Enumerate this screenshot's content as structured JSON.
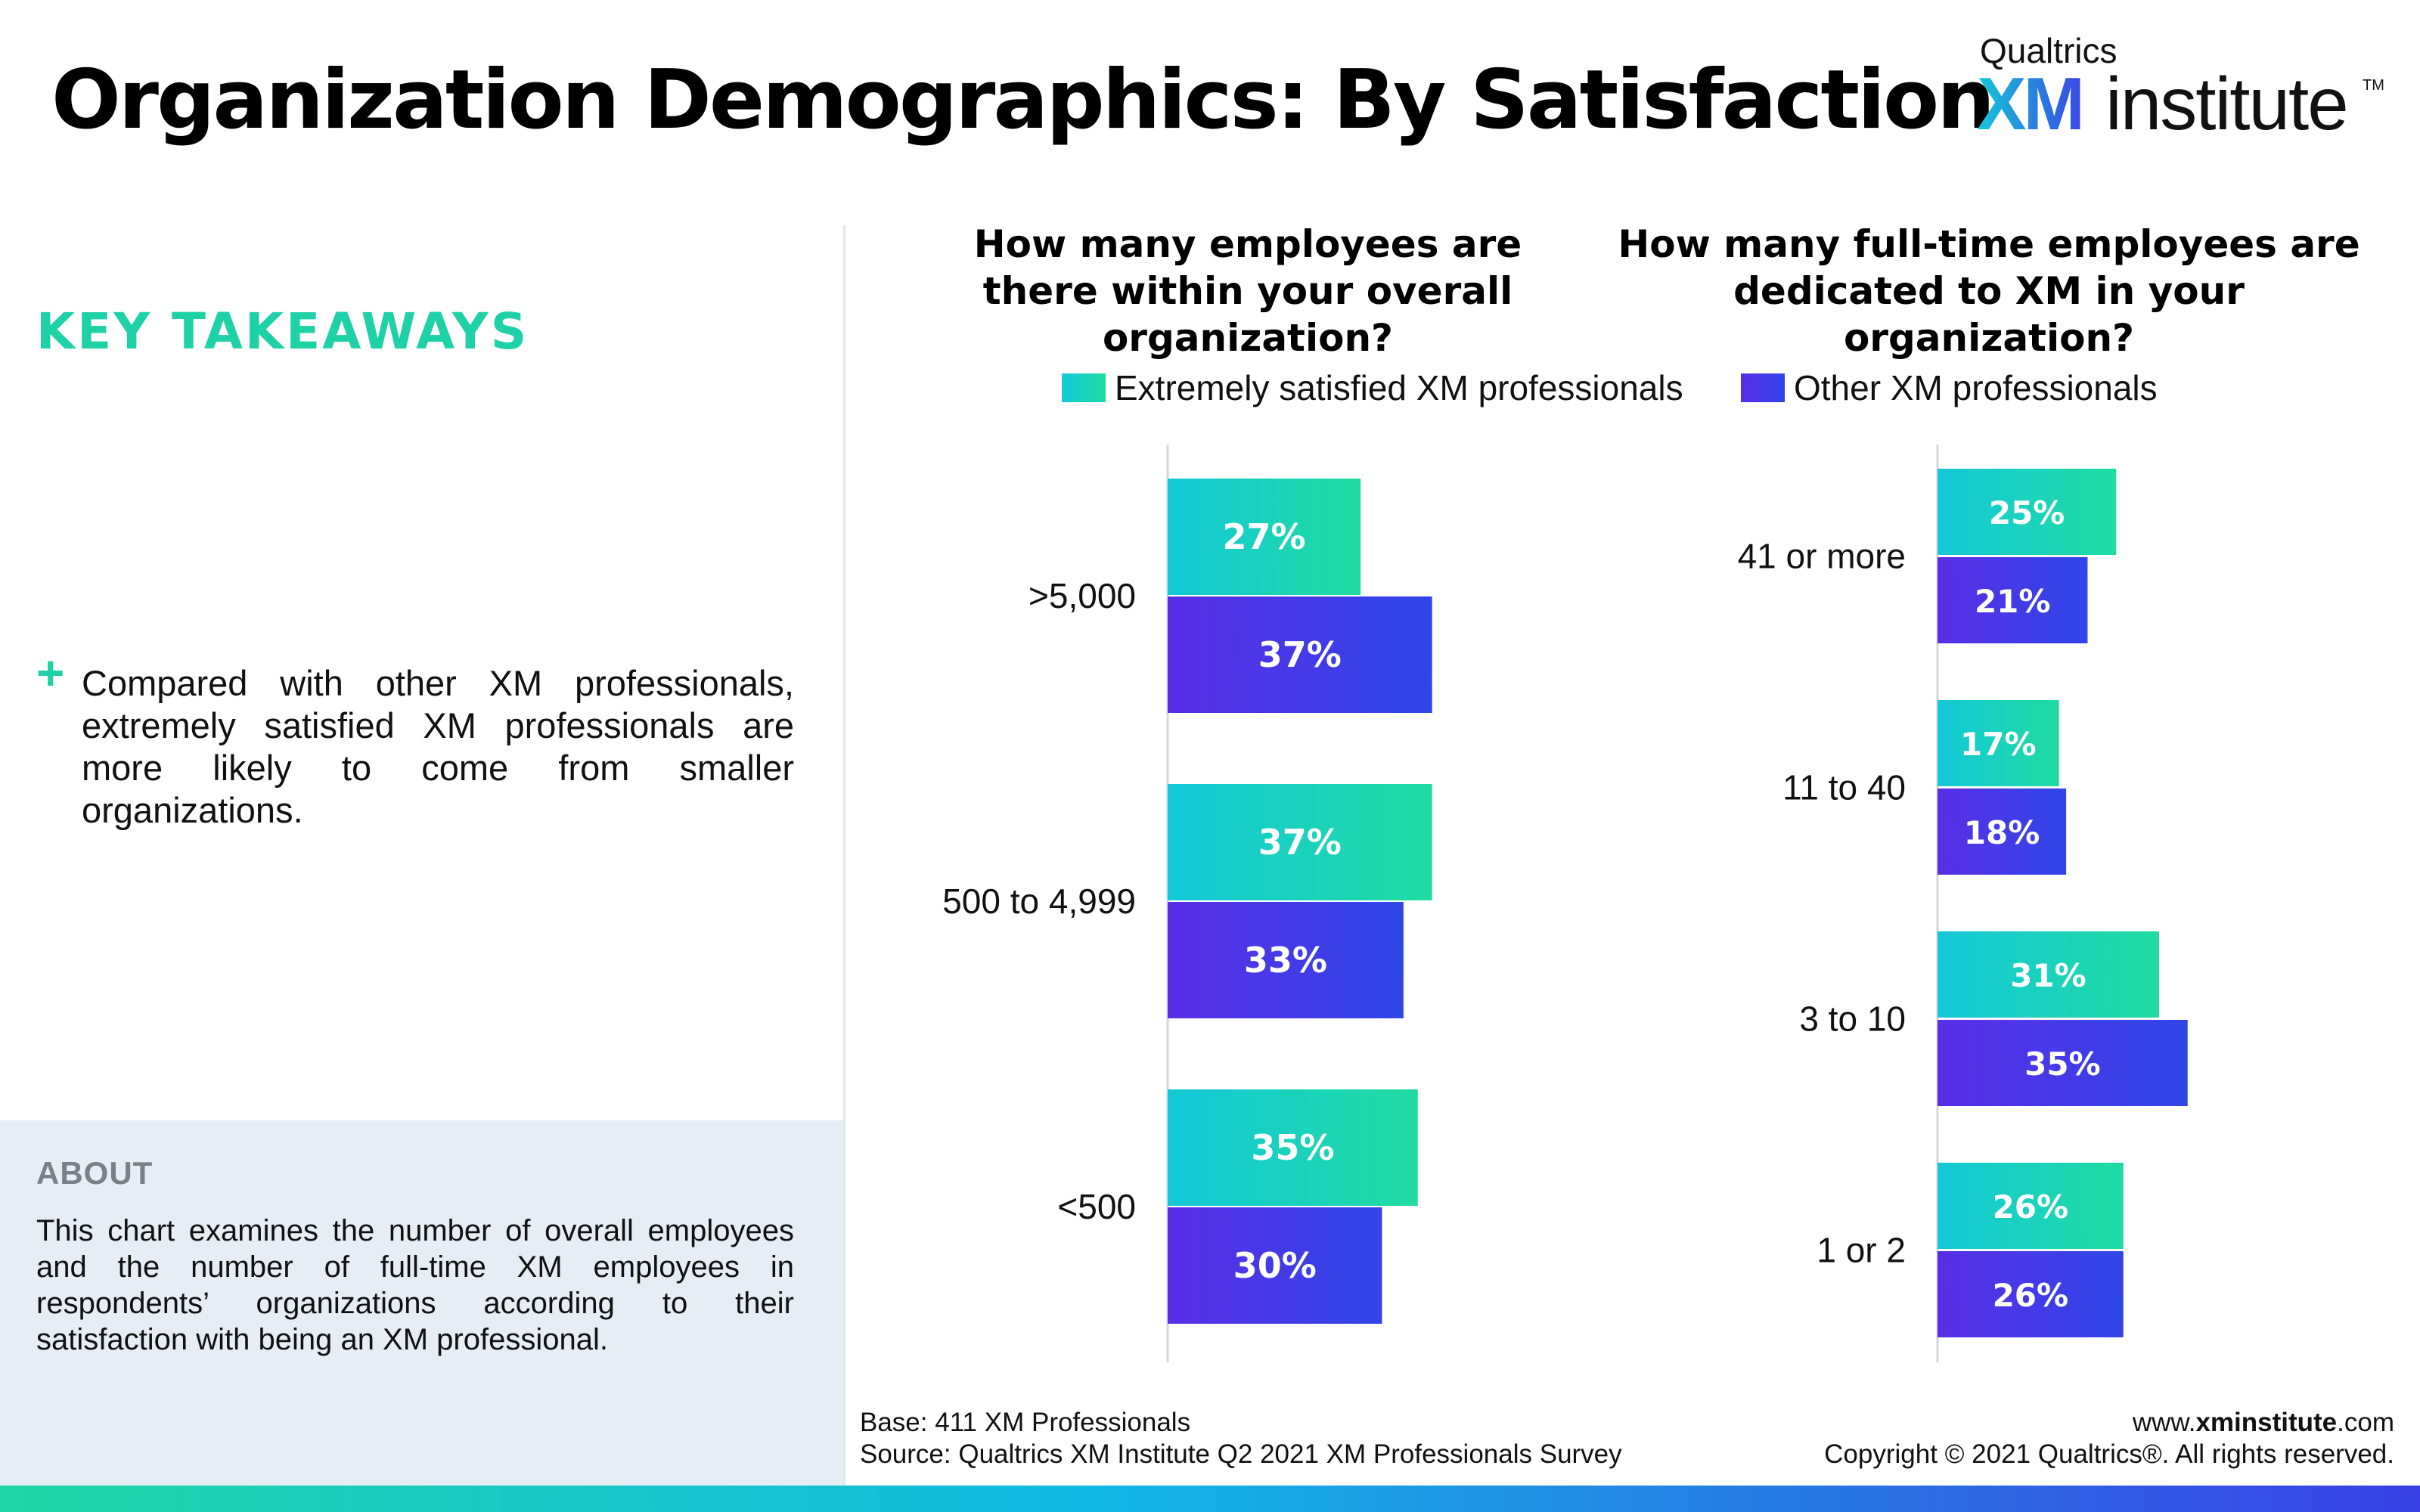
{
  "header": {
    "title": "Organization Demographics: By Satisfaction",
    "logo_company": "Qualtrics",
    "logo_xm": "XM",
    "logo_word": "institute",
    "logo_tm": "TM"
  },
  "takeaways": {
    "heading": "KEY TAKEAWAYS",
    "bullet_symbol": "+",
    "items": [
      "Compared with other XM professionals, extremely satisfied XM professionals are more likely to come from smaller organizations."
    ]
  },
  "about": {
    "heading": "ABOUT",
    "text": "This chart examines the number of overall employees and the number of full-time XM employees in respondents’ organizations according to their satisfaction with being an XM professional."
  },
  "legend": {
    "items": [
      "Extremely satisfied XM professionals",
      "Other XM professionals"
    ]
  },
  "colors": {
    "teal_start": "#14c8d8",
    "teal_end": "#20dca2",
    "purple_start": "#5a2ee6",
    "purple_end": "#2f46e8",
    "takeaway_green": "#1fd1a6",
    "about_bg": "#e6edf5"
  },
  "chart_data": [
    {
      "type": "bar",
      "orientation": "horizontal",
      "title": "How many employees are there within your overall organization?",
      "categories": [
        ">5,000",
        "500 to 4,999",
        "<500"
      ],
      "series": [
        {
          "name": "Extremely satisfied XM professionals",
          "values": [
            27,
            37,
            35
          ],
          "labels": [
            "27%",
            "37%",
            "35%"
          ]
        },
        {
          "name": "Other XM professionals",
          "values": [
            37,
            33,
            30
          ],
          "labels": [
            "37%",
            "33%",
            "30%"
          ]
        }
      ],
      "unit": "%",
      "xlim": [
        0,
        100
      ],
      "grid": false,
      "legend_position": "top"
    },
    {
      "type": "bar",
      "orientation": "horizontal",
      "title": "How many full-time employees are dedicated to XM in your organization?",
      "categories": [
        "41 or more",
        "11 to 40",
        "3 to 10",
        "1 or 2"
      ],
      "series": [
        {
          "name": "Extremely satisfied XM professionals",
          "values": [
            25,
            17,
            31,
            26
          ],
          "labels": [
            "25%",
            "17%",
            "31%",
            "26%"
          ]
        },
        {
          "name": "Other XM professionals",
          "values": [
            21,
            18,
            35,
            26
          ],
          "labels": [
            "21%",
            "18%",
            "35%",
            "26%"
          ]
        }
      ],
      "unit": "%",
      "xlim": [
        0,
        100
      ],
      "grid": false,
      "legend_position": "top"
    }
  ],
  "footer": {
    "base": "Base: 411 XM Professionals",
    "source": "Source: Qualtrics XM Institute Q2 2021 XM Professionals Survey",
    "website_prefix": "www.",
    "website_bold": "xminstitute",
    "website_suffix": ".com",
    "copyright": "Copyright © 2021 Qualtrics®. All rights reserved."
  }
}
